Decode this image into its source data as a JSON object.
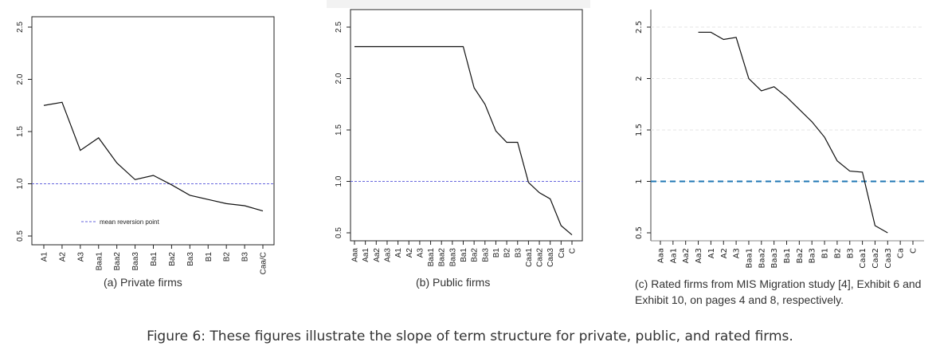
{
  "figure_caption": "Figure 6: These figures illustrate the slope of term structure for private, public, and rated firms.",
  "chart_data": [
    {
      "id": "a",
      "type": "line",
      "caption": "(a) Private firms",
      "categories": [
        "A1",
        "A2",
        "A3",
        "Baa1",
        "Baa2",
        "Baa3",
        "Ba1",
        "Ba2",
        "Ba3",
        "B1",
        "B2",
        "B3",
        "Caa/C"
      ],
      "tick_labels": [
        "A1",
        "A2",
        "A3",
        "Baa1",
        "Baa2",
        "Baa3",
        "Ba1",
        "Ba2",
        "Ba3",
        "B1",
        "B2",
        "B3",
        "Caa/C"
      ],
      "series": [
        {
          "values": [
            1.75,
            1.78,
            1.32,
            1.44,
            1.2,
            1.04,
            1.08,
            0.99,
            0.89,
            0.85,
            0.81,
            0.79,
            0.74
          ]
        }
      ],
      "reference_line": {
        "value": 1.0,
        "color": "#6666dd",
        "style": "dashed"
      },
      "legend": {
        "label": "mean reversion point"
      },
      "yticks": [
        "0.5",
        "1.0",
        "1.5",
        "2.0",
        "2.5"
      ],
      "ylim": [
        0.5,
        2.5
      ],
      "grid": false
    },
    {
      "id": "b",
      "type": "line",
      "caption": "(b) Public firms",
      "categories": [
        "Aaa",
        "Aa1",
        "Aa2",
        "Aa3",
        "A1",
        "A2",
        "A3",
        "Baa1",
        "Baa2",
        "Baa3",
        "Ba1",
        "Ba2",
        "Ba3",
        "B1",
        "B2",
        "B3",
        "Caa1",
        "Caa2",
        "Caa3",
        "Ca",
        "C"
      ],
      "tick_labels": [
        "Aaa",
        "Aa1",
        "Aa2",
        "Aa3",
        "A1",
        "A2",
        "A3",
        "Baa1",
        "Baa2",
        "Baa3",
        "Ba1",
        "Ba2",
        "Ba3",
        "B1",
        "B2",
        "B3",
        "Caa1",
        "Caa2",
        "Caa3",
        "Ca",
        "C"
      ],
      "series": [
        {
          "values": [
            2.31,
            2.31,
            2.31,
            2.31,
            2.31,
            2.31,
            2.31,
            2.31,
            2.31,
            2.31,
            2.31,
            1.91,
            1.75,
            1.49,
            1.38,
            1.38,
            0.99,
            0.89,
            0.83,
            0.57,
            0.48
          ]
        }
      ],
      "reference_line": {
        "value": 1.0,
        "color": "#6666dd",
        "style": "dashed"
      },
      "yticks": [
        "0.5",
        "1.0",
        "1.5",
        "2.0",
        "2.5"
      ],
      "ylim": [
        0.5,
        2.5
      ],
      "grid": false
    },
    {
      "id": "c",
      "type": "line",
      "caption": "(c) Rated firms from MIS Migration study [4], Exhibit 6 and Exhibit 10, on pages 4 and 8, respectively.",
      "categories": [
        "Aaa",
        "Aa1",
        "Aa2",
        "Aa3",
        "A1",
        "A2",
        "A3",
        "Baa1",
        "Baa2",
        "Baa3",
        "Ba1",
        "Ba2",
        "Ba3",
        "B1",
        "B2",
        "B3",
        "Caa1",
        "Caa2",
        "Caa3",
        "Ca",
        "C"
      ],
      "tick_labels": [
        "Aaa",
        "Aa1",
        "Aa2",
        "Aa3",
        "A1",
        "A2",
        "A3",
        "Baa1",
        "Baa2",
        "Baa3",
        "Ba1",
        "Ba2",
        "Ba3",
        "B1",
        "B2",
        "B3",
        "Caa1",
        "Caa2",
        "Caa3",
        "Ca",
        "C"
      ],
      "series": [
        {
          "values": [
            null,
            null,
            null,
            2.45,
            2.45,
            2.38,
            2.4,
            2.0,
            1.88,
            1.92,
            1.82,
            1.7,
            1.58,
            1.43,
            1.2,
            1.1,
            1.09,
            0.57,
            0.5,
            null,
            null
          ]
        }
      ],
      "reference_line": {
        "value": 1.0,
        "color": "#1f77b4",
        "style": "dashed"
      },
      "yticks": [
        "0.5",
        "1",
        "1.5",
        "2",
        "2.5"
      ],
      "ylim": [
        0.5,
        2.5
      ],
      "grid": true
    }
  ]
}
